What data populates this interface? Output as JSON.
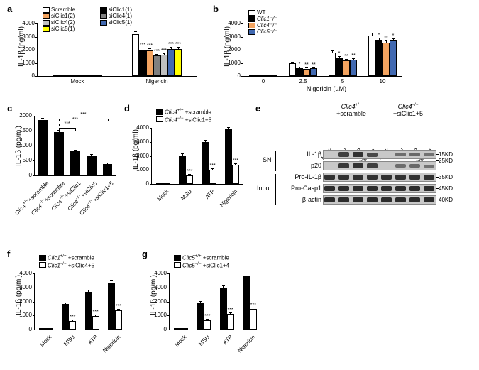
{
  "panels": {
    "a": {
      "label": "a",
      "ylabel": "IL-1β (pg/ml)",
      "ymax": 4000,
      "ytick_step": 1000,
      "groups": [
        "Mock",
        "Nigericin"
      ],
      "series": [
        {
          "name": "Scramble",
          "color": "#ffffff",
          "values": [
            20,
            3200
          ],
          "err": [
            30,
            150
          ]
        },
        {
          "name": "siClic1(1)",
          "color": "#000000",
          "values": [
            15,
            2000
          ],
          "err": [
            20,
            100
          ],
          "sig": [
            "",
            "***"
          ]
        },
        {
          "name": "siClic1(2)",
          "color": "#f4a460",
          "values": [
            18,
            1950
          ],
          "err": [
            25,
            80
          ],
          "sig": [
            "",
            "***"
          ]
        },
        {
          "name": "siClic4(1)",
          "color": "#808080",
          "values": [
            16,
            1550
          ],
          "err": [
            20,
            90
          ],
          "sig": [
            "",
            "***"
          ]
        },
        {
          "name": "siClic4(2)",
          "color": "#c0c0c0",
          "values": [
            17,
            1600
          ],
          "err": [
            22,
            85
          ],
          "sig": [
            "",
            "***"
          ]
        },
        {
          "name": "siClic5(1)",
          "color": "#4169b1",
          "values": [
            14,
            2050
          ],
          "err": [
            18,
            95
          ],
          "sig": [
            "",
            "***"
          ]
        },
        {
          "name": "siClic5(1)",
          "color": "#ffff00",
          "values": [
            19,
            2080
          ],
          "err": [
            24,
            100
          ],
          "sig": [
            "",
            "***"
          ]
        }
      ]
    },
    "b": {
      "label": "b",
      "ylabel": "IL-1β (pg/ml)",
      "ymax": 4000,
      "ytick_step": 1000,
      "xlabel": "Nigericin (µM)",
      "groups": [
        "0",
        "2.5",
        "5",
        "10"
      ],
      "series": [
        {
          "name": "WT",
          "color": "#ffffff",
          "values": [
            20,
            950,
            1800,
            3100
          ],
          "err": [
            15,
            50,
            80,
            120
          ]
        },
        {
          "name": "Clic1⁻/⁻",
          "italic": true,
          "color": "#000000",
          "values": [
            15,
            600,
            1400,
            2750
          ],
          "err": [
            12,
            40,
            70,
            110
          ],
          "sig": [
            "",
            "*",
            "*",
            "*"
          ]
        },
        {
          "name": "Clic4⁻/⁻",
          "italic": true,
          "color": "#f4a460",
          "values": [
            18,
            550,
            1200,
            2550
          ],
          "err": [
            14,
            38,
            65,
            100
          ],
          "sig": [
            "",
            "**",
            "**",
            "**"
          ]
        },
        {
          "name": "Clic5⁻/⁻",
          "italic": true,
          "color": "#4169b1",
          "values": [
            16,
            570,
            1230,
            2700
          ],
          "err": [
            13,
            35,
            60,
            105
          ],
          "sig": [
            "",
            "**",
            "**",
            "*"
          ]
        }
      ]
    },
    "c": {
      "label": "c",
      "ylabel": "IL-1β (pg/ml)",
      "ymax": 2000,
      "ytick_step": 500,
      "categories_html": [
        "<span class='italic'>Clic4</span><span class='sup'>+/+</span>+scramble",
        "<span class='italic'>Clic4</span><span class='sup'>−/−</span>+scramble",
        "<span class='italic'>Clic4</span><span class='sup'>−/−</span>+siClic1",
        "<span class='italic'>Clic4</span><span class='sup'>−/−</span>+siClic5",
        "<span class='italic'>Clic4</span><span class='sup'>−/−</span>+siClic1+5"
      ],
      "values": [
        1850,
        1450,
        800,
        650,
        380
      ],
      "err": [
        60,
        50,
        40,
        35,
        30
      ],
      "color": "#000000",
      "sig_brackets": [
        {
          "from": 1,
          "to": 2,
          "label": "***",
          "y": 1600
        },
        {
          "from": 1,
          "to": 3,
          "label": "***",
          "y": 1750
        },
        {
          "from": 1,
          "to": 4,
          "label": "***",
          "y": 1900
        }
      ]
    },
    "d": {
      "label": "d",
      "ylabel": "IL-1β (pg/ml)",
      "ymax": 4000,
      "ytick_step": 1000,
      "groups": [
        "Mock",
        "MSU",
        "ATP",
        "Nigericin"
      ],
      "series": [
        {
          "name_html": "<span class='italic'>Clic4</span><span class='sup'>+/+</span> +scramble",
          "color": "#000000",
          "values": [
            30,
            2050,
            3000,
            3900
          ],
          "err": [
            20,
            80,
            100,
            120
          ]
        },
        {
          "name_html": "<span class='italic'>Clic4</span><span class='sup'>−/−</span> +siClic1+5",
          "color": "#ffffff",
          "values": [
            20,
            600,
            1000,
            1350
          ],
          "err": [
            15,
            50,
            60,
            70
          ],
          "sig": [
            "",
            "***",
            "***",
            "***"
          ]
        }
      ]
    },
    "e": {
      "label": "e",
      "header_groups_html": [
        "<span class='italic'>Clic4</span><span class='sup'>+/+</span><br>+scramble",
        "<span class='italic'>Clic4</span><span class='sup'>−/−</span><br>+siClic1+5"
      ],
      "lanes": [
        "Mock",
        "MSU",
        "ATP",
        "Nigericin",
        "Mock",
        "MSU",
        "ATP",
        "Nigericin"
      ],
      "rows": [
        {
          "label": "IL-1β",
          "group": "SN",
          "size": "15KD",
          "intensities": [
            0,
            0.7,
            0.85,
            0.6,
            0,
            0.25,
            0.3,
            0.2
          ]
        },
        {
          "label": "p20",
          "group": "SN",
          "size": "25KD",
          "intensities": [
            0,
            0.8,
            0.85,
            0.7,
            0,
            0.25,
            0.3,
            0.2
          ]
        },
        {
          "label": "Pro-IL-1β",
          "group": "Input",
          "size": "35KD",
          "intensities": [
            0.85,
            0.85,
            0.85,
            0.85,
            0.85,
            0.85,
            0.85,
            0.85
          ]
        },
        {
          "label": "Pro-Casp1",
          "group": "Input",
          "size": "45KD",
          "intensities": [
            0.9,
            0.9,
            0.9,
            0.9,
            0.9,
            0.9,
            0.9,
            0.9
          ]
        },
        {
          "label": "β-actin",
          "group": "Input",
          "size": "40KD",
          "intensities": [
            0.9,
            0.9,
            0.9,
            0.9,
            0.9,
            0.9,
            0.9,
            0.9
          ]
        }
      ]
    },
    "f": {
      "label": "f",
      "ylabel": "IL-1β (pg/ml)",
      "ymax": 4000,
      "ytick_step": 1000,
      "groups": [
        "Mock",
        "MSU",
        "ATP",
        "Nigericin"
      ],
      "series": [
        {
          "name_html": "<span class='italic'>Clic1</span><span class='sup'>+/+</span> +scramble",
          "color": "#000000",
          "values": [
            25,
            1800,
            2700,
            3350
          ],
          "err": [
            18,
            70,
            90,
            150
          ]
        },
        {
          "name_html": "<span class='italic'>Clic1</span><span class='sup'>−/−</span> +siClic4+5",
          "color": "#ffffff",
          "values": [
            18,
            600,
            950,
            1350
          ],
          "err": [
            12,
            45,
            55,
            80
          ],
          "sig": [
            "",
            "***",
            "***",
            "***"
          ]
        }
      ]
    },
    "g": {
      "label": "g",
      "ylabel": "IL-1β (pg/ml)",
      "ymax": 4000,
      "ytick_step": 1000,
      "groups": [
        "Mock",
        "MSU",
        "ATP",
        "Nigericin"
      ],
      "series": [
        {
          "name_html": "<span class='italic'>Clic5</span><span class='sup'>+/+</span> +scramble",
          "color": "#000000",
          "values": [
            28,
            1900,
            3000,
            3850
          ],
          "err": [
            20,
            75,
            100,
            130
          ]
        },
        {
          "name_html": "<span class='italic'>Clic5</span><span class='sup'>−/−</span> +siClic1+4",
          "color": "#ffffff",
          "values": [
            20,
            650,
            1100,
            1450
          ],
          "err": [
            14,
            50,
            60,
            85
          ],
          "sig": [
            "",
            "***",
            "***",
            "***"
          ]
        }
      ]
    }
  }
}
